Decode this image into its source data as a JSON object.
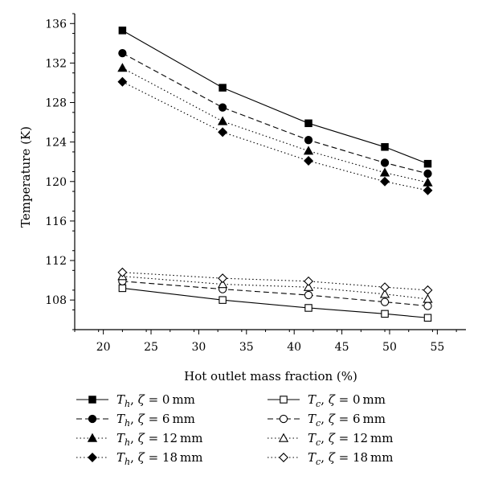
{
  "chart_data": {
    "type": "line",
    "xlabel": "Hot outlet mass fraction (%)",
    "ylabel": "Temperature (K)",
    "xlim": [
      17,
      58
    ],
    "ylim": [
      105,
      137
    ],
    "xticks": [
      20,
      25,
      30,
      35,
      40,
      45,
      50,
      55
    ],
    "yticks": [
      108,
      112,
      116,
      120,
      124,
      128,
      132,
      136
    ],
    "x": [
      22,
      32.5,
      41.5,
      49.5,
      54
    ],
    "grid": false,
    "legend_position": "bottom",
    "series": [
      {
        "id": "th0",
        "name": "T_h, ζ = 0 mm",
        "sym": "T",
        "sub": "h",
        "zeta": "0",
        "marker": "square",
        "filled": true,
        "dash": "solid",
        "values": [
          135.3,
          129.5,
          125.9,
          123.5,
          121.8
        ]
      },
      {
        "id": "th6",
        "name": "T_h, ζ = 6 mm",
        "sym": "T",
        "sub": "h",
        "zeta": "6",
        "marker": "circle",
        "filled": true,
        "dash": "dashed",
        "values": [
          133.0,
          127.5,
          124.2,
          121.9,
          120.8
        ]
      },
      {
        "id": "th12",
        "name": "T_h, ζ = 12 mm",
        "sym": "T",
        "sub": "h",
        "zeta": "12",
        "marker": "triangle",
        "filled": true,
        "dash": "dotted",
        "values": [
          131.5,
          126.1,
          123.1,
          120.9,
          119.9
        ]
      },
      {
        "id": "th18",
        "name": "T_h, ζ = 18 mm",
        "sym": "T",
        "sub": "h",
        "zeta": "18",
        "marker": "diamond",
        "filled": true,
        "dash": "dotted",
        "values": [
          130.1,
          125.0,
          122.1,
          120.0,
          119.1
        ]
      },
      {
        "id": "tc0",
        "name": "T_c, ζ = 0 mm",
        "sym": "T",
        "sub": "c",
        "zeta": "0",
        "marker": "square",
        "filled": false,
        "dash": "solid",
        "values": [
          109.2,
          108.0,
          107.2,
          106.6,
          106.2
        ]
      },
      {
        "id": "tc6",
        "name": "T_c, ζ = 6 mm",
        "sym": "T",
        "sub": "c",
        "zeta": "6",
        "marker": "circle",
        "filled": false,
        "dash": "dashed",
        "values": [
          109.9,
          109.1,
          108.5,
          107.8,
          107.4
        ]
      },
      {
        "id": "tc12",
        "name": "T_c, ζ = 12 mm",
        "sym": "T",
        "sub": "c",
        "zeta": "12",
        "marker": "triangle",
        "filled": false,
        "dash": "dotted",
        "values": [
          110.4,
          109.6,
          109.3,
          108.6,
          108.1
        ]
      },
      {
        "id": "tc18",
        "name": "T_c, ζ = 18 mm",
        "sym": "T",
        "sub": "c",
        "zeta": "18",
        "marker": "diamond",
        "filled": false,
        "dash": "dotted",
        "values": [
          110.8,
          110.2,
          109.9,
          109.3,
          109.0
        ]
      }
    ],
    "legend_unit": "mm",
    "legend_zeta_symbol": "ζ"
  }
}
